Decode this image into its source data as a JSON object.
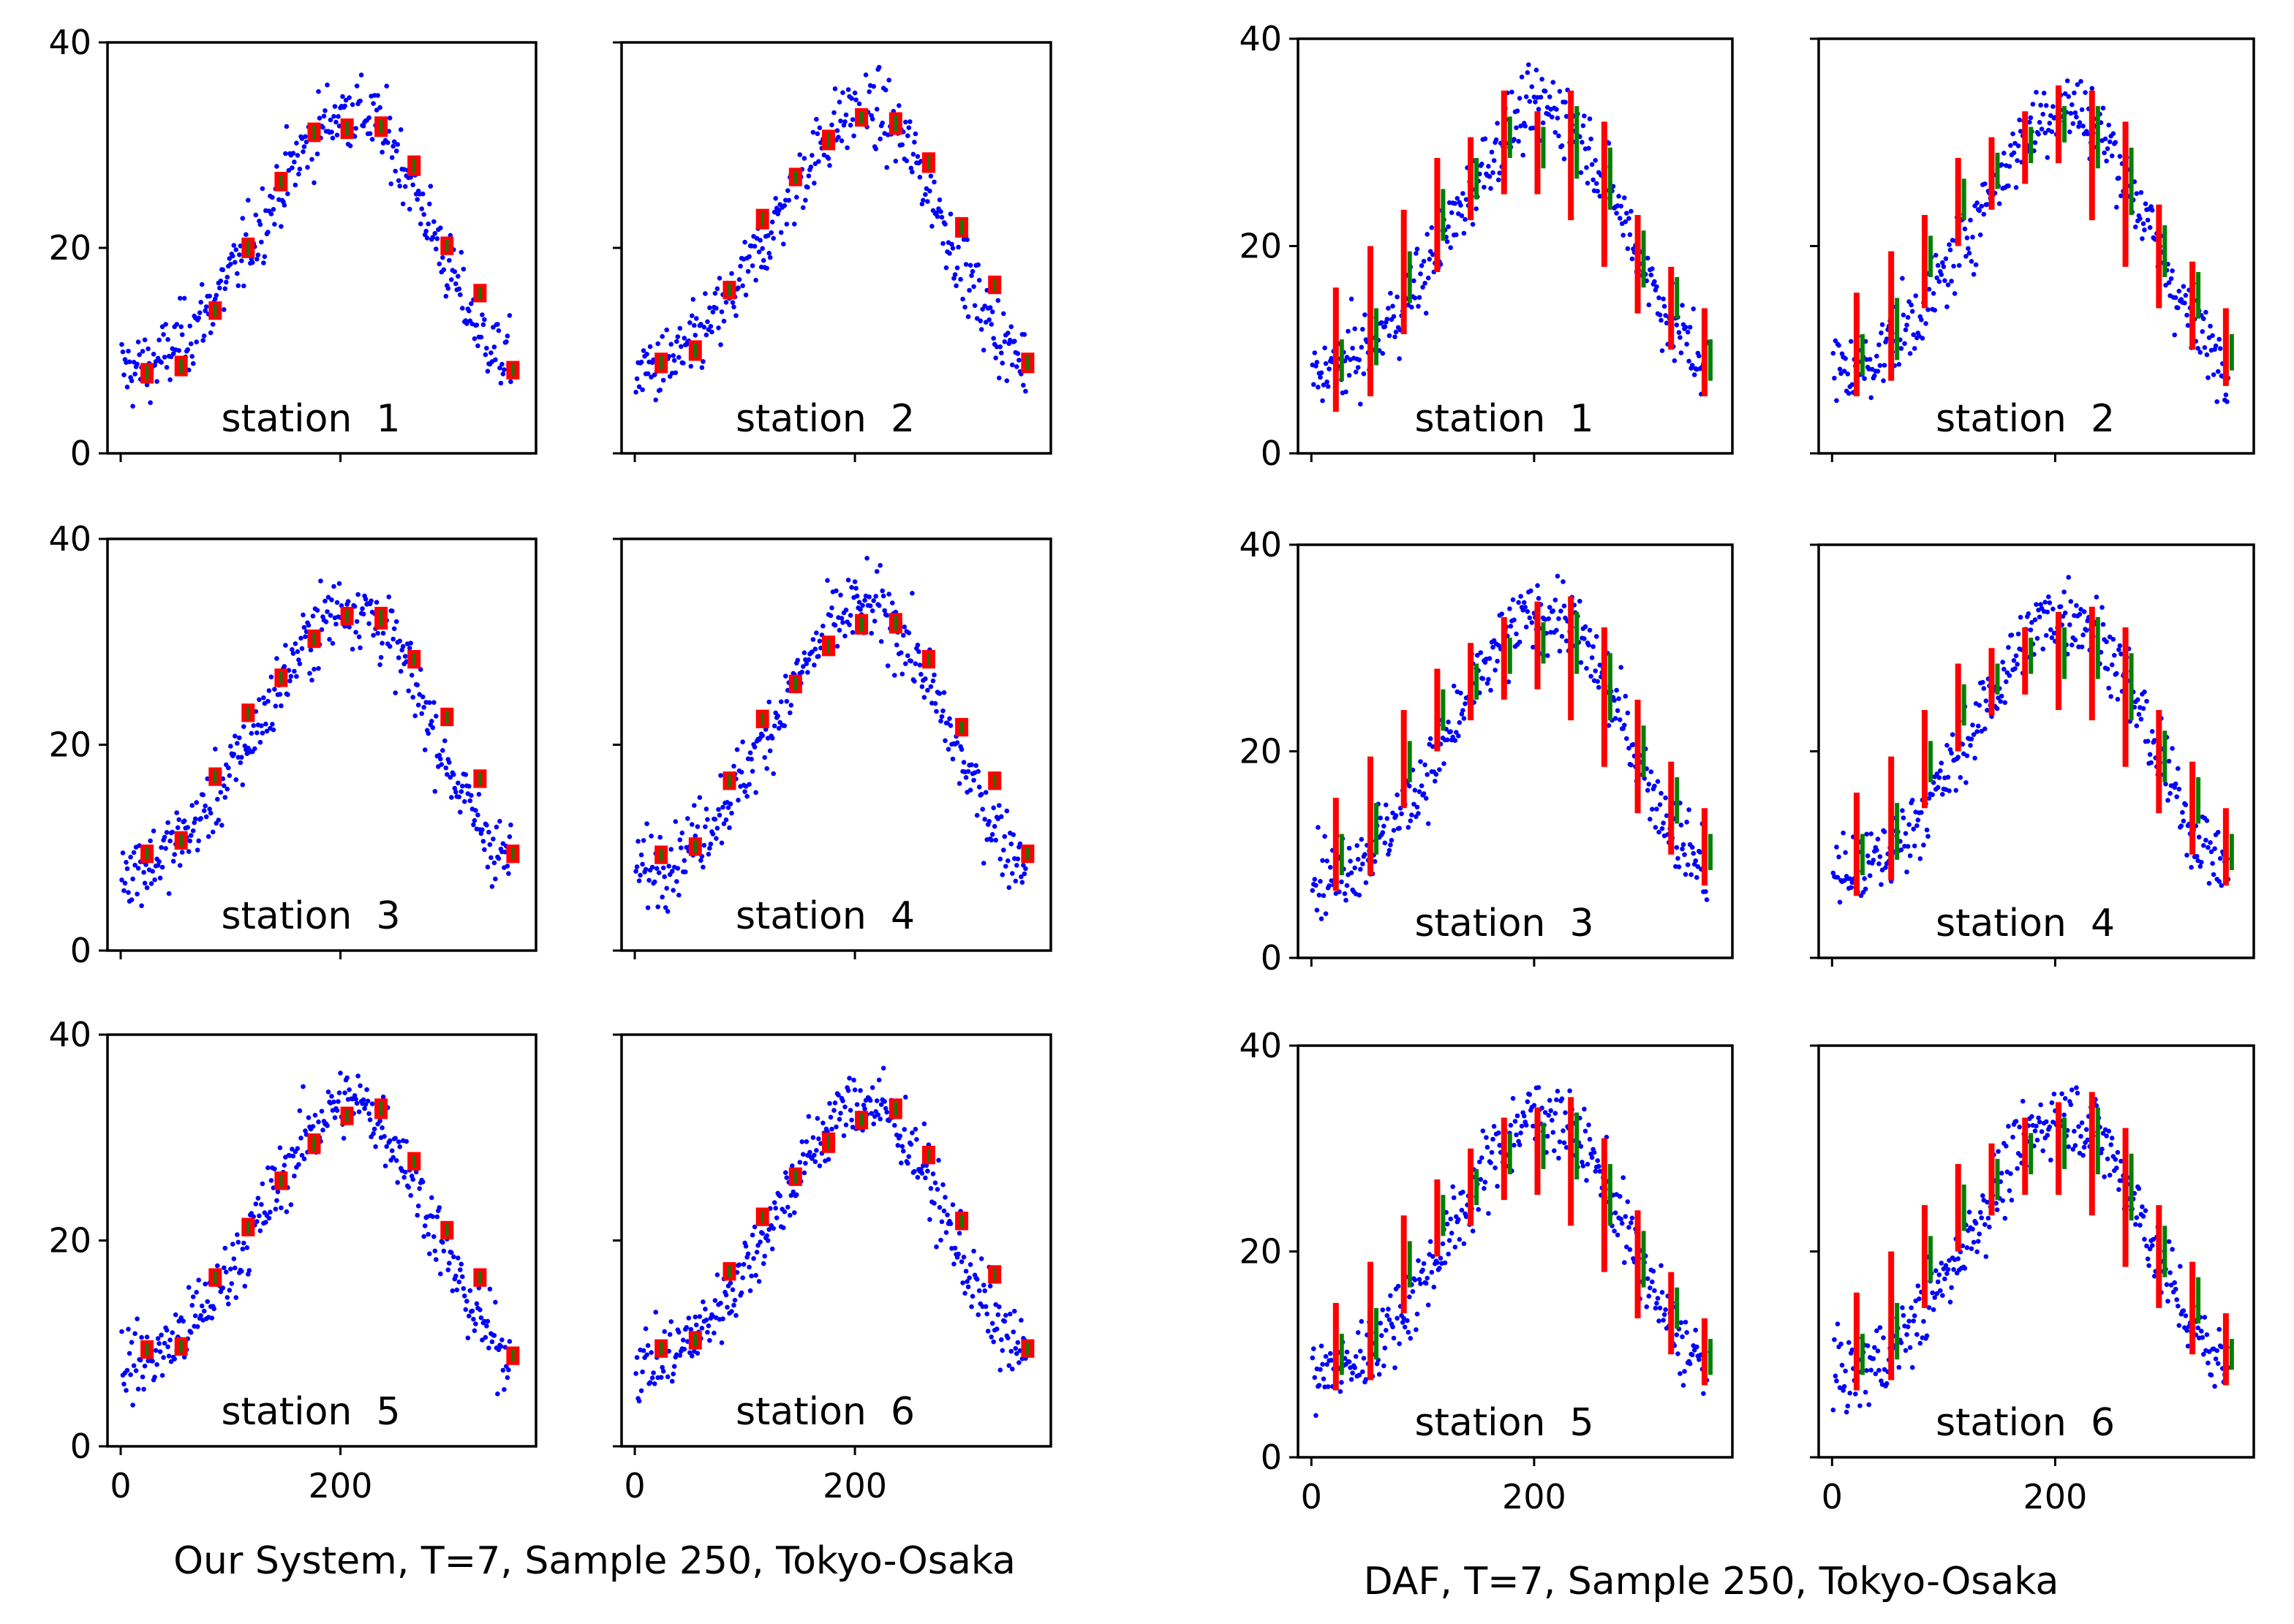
{
  "chart_data": [
    {
      "type": "scatter",
      "title": "Our System, T=7, Sample 250, Tokyo-Osaka",
      "xlabel": "",
      "ylabel": "",
      "xlim": [
        -12,
        378
      ],
      "ylim": [
        0,
        40
      ],
      "xticks": [
        0,
        200
      ],
      "yticks": [
        0,
        20,
        40
      ],
      "bar_style": "box",
      "colors": {
        "points": "#0000ff",
        "pred_range": "#ff0000",
        "pred_mean": "#008000"
      },
      "panels": [
        {
          "label": "station  1",
          "dip": 0,
          "bars": [
            [
              24,
              6.8,
              8.8,
              7.8
            ],
            [
              55,
              7.5,
              9.5,
              8.6
            ],
            [
              86,
              13.0,
              14.8,
              13.9
            ],
            [
              116,
              19.0,
              21.0,
              20.0
            ],
            [
              146,
              25.5,
              27.4,
              26.5
            ],
            [
              176,
              30.3,
              32.2,
              31.2
            ],
            [
              206,
              30.6,
              32.6,
              31.6
            ],
            [
              237,
              30.8,
              32.8,
              31.8
            ],
            [
              267,
              27.0,
              29.0,
              28.0
            ],
            [
              297,
              19.3,
              21.1,
              20.2
            ],
            [
              327,
              14.7,
              16.5,
              15.6
            ],
            [
              357,
              7.2,
              9.0,
              8.1
            ]
          ]
        },
        {
          "label": "station  2",
          "dip": 0,
          "bars": [
            [
              24,
              7.8,
              9.8,
              8.8
            ],
            [
              55,
              9.0,
              11.0,
              10.0
            ],
            [
              86,
              15.0,
              16.8,
              15.9
            ],
            [
              116,
              21.8,
              23.8,
              22.8
            ],
            [
              146,
              26.0,
              27.8,
              26.9
            ],
            [
              176,
              29.5,
              31.5,
              30.5
            ],
            [
              206,
              31.8,
              33.6,
              32.7
            ],
            [
              237,
              31.0,
              33.2,
              32.1
            ],
            [
              267,
              27.3,
              29.3,
              28.3
            ],
            [
              297,
              21.0,
              23.0,
              22.0
            ],
            [
              327,
              15.5,
              17.3,
              16.4
            ],
            [
              357,
              7.8,
              9.8,
              8.8
            ]
          ]
        },
        {
          "label": "station  3",
          "dip": 0,
          "bars": [
            [
              24,
              8.5,
              10.3,
              9.4
            ],
            [
              55,
              9.8,
              11.6,
              10.7
            ],
            [
              86,
              16.0,
              17.8,
              16.9
            ],
            [
              116,
              22.2,
              24.0,
              23.1
            ],
            [
              146,
              25.6,
              27.4,
              26.5
            ],
            [
              176,
              29.4,
              31.2,
              30.3
            ],
            [
              206,
              31.6,
              33.4,
              32.5
            ],
            [
              237,
              31.2,
              33.4,
              32.3
            ],
            [
              267,
              27.4,
              29.2,
              28.3
            ],
            [
              297,
              21.8,
              23.6,
              22.7
            ],
            [
              327,
              15.8,
              17.6,
              16.7
            ],
            [
              357,
              8.5,
              10.3,
              9.4
            ]
          ]
        },
        {
          "label": "station  4",
          "dip": 0,
          "bars": [
            [
              24,
              8.4,
              10.2,
              9.3
            ],
            [
              55,
              9.2,
              11.0,
              10.1
            ],
            [
              86,
              15.6,
              17.4,
              16.5
            ],
            [
              116,
              21.6,
              23.4,
              22.5
            ],
            [
              146,
              25.0,
              26.8,
              25.9
            ],
            [
              176,
              28.6,
              30.6,
              29.6
            ],
            [
              206,
              30.7,
              32.7,
              31.7
            ],
            [
              237,
              30.8,
              32.8,
              31.8
            ],
            [
              267,
              27.4,
              29.2,
              28.3
            ],
            [
              297,
              20.8,
              22.6,
              21.7
            ],
            [
              327,
              15.6,
              17.4,
              16.5
            ],
            [
              357,
              8.5,
              10.3,
              9.4
            ]
          ]
        },
        {
          "label": "station  5",
          "dip": 0,
          "bars": [
            [
              24,
              8.5,
              10.3,
              9.4
            ],
            [
              55,
              8.8,
              10.6,
              9.7
            ],
            [
              86,
              15.5,
              17.3,
              16.4
            ],
            [
              116,
              20.4,
              22.2,
              21.3
            ],
            [
              146,
              24.9,
              26.7,
              25.8
            ],
            [
              176,
              28.4,
              30.4,
              29.4
            ],
            [
              206,
              31.2,
              33.0,
              32.1
            ],
            [
              237,
              31.8,
              33.8,
              32.8
            ],
            [
              267,
              26.8,
              28.6,
              27.7
            ],
            [
              297,
              20.1,
              21.9,
              21.0
            ],
            [
              327,
              15.5,
              17.3,
              16.4
            ],
            [
              357,
              7.9,
              9.7,
              8.8
            ]
          ]
        },
        {
          "label": "station  6",
          "dip": 0,
          "bars": [
            [
              24,
              8.6,
              10.4,
              9.5
            ],
            [
              55,
              9.4,
              11.2,
              10.3
            ],
            [
              86,
              16.1,
              17.9,
              17.0
            ],
            [
              116,
              21.4,
              23.2,
              22.3
            ],
            [
              146,
              25.3,
              27.1,
              26.2
            ],
            [
              176,
              28.5,
              30.5,
              29.5
            ],
            [
              206,
              30.8,
              32.6,
              31.7
            ],
            [
              237,
              31.8,
              33.8,
              32.8
            ],
            [
              267,
              27.4,
              29.2,
              28.3
            ],
            [
              297,
              21.0,
              22.8,
              21.9
            ],
            [
              327,
              15.8,
              17.6,
              16.7
            ],
            [
              357,
              8.6,
              10.4,
              9.5
            ]
          ]
        }
      ]
    },
    {
      "type": "scatter",
      "title": "DAF, T=7, Sample 250, Tokyo-Osaka",
      "xlabel": "",
      "ylabel": "",
      "xlim": [
        -12,
        378
      ],
      "ylim": [
        0,
        40
      ],
      "xticks": [
        0,
        200
      ],
      "yticks": [
        0,
        20,
        40
      ],
      "bar_style": "range",
      "colors": {
        "points": "#0000ff",
        "pred_range": "#ff0000",
        "pred_mean": "#008000"
      },
      "panels": [
        {
          "label": "station  1",
          "dip": 0,
          "bars": [
            [
              22,
              4.0,
              16.0,
              7.0,
              11.0
            ],
            [
              53,
              5.5,
              20.0,
              8.5,
              14.0
            ],
            [
              83,
              11.5,
              23.5,
              14.5,
              19.5
            ],
            [
              113,
              17.5,
              28.5,
              20.5,
              25.5
            ],
            [
              143,
              22.5,
              30.5,
              24.5,
              28.5
            ],
            [
              173,
              25.0,
              35.0,
              28.5,
              32.5
            ],
            [
              203,
              25.0,
              33.0,
              27.5,
              31.5
            ],
            [
              233,
              22.5,
              35.0,
              26.5,
              33.5
            ],
            [
              263,
              18.0,
              32.0,
              23.5,
              29.5
            ],
            [
              293,
              13.5,
              23.0,
              16.0,
              21.5
            ],
            [
              323,
              10.0,
              18.0,
              13.0,
              17.0
            ],
            [
              353,
              5.5,
              14.0,
              7.0,
              11.0
            ]
          ]
        },
        {
          "label": "station  2",
          "dip": 0,
          "bars": [
            [
              22,
              5.5,
              15.5,
              7.5,
              11.5
            ],
            [
              53,
              7.0,
              19.5,
              9.0,
              15.0
            ],
            [
              83,
              14.0,
              23.0,
              17.0,
              21.0
            ],
            [
              113,
              20.0,
              28.5,
              22.5,
              26.5
            ],
            [
              143,
              23.5,
              30.5,
              25.5,
              29.0
            ],
            [
              173,
              26.0,
              33.0,
              28.0,
              31.5
            ],
            [
              203,
              28.0,
              35.5,
              30.0,
              33.5
            ],
            [
              233,
              22.5,
              35.0,
              27.5,
              33.5
            ],
            [
              263,
              18.0,
              32.0,
              23.0,
              29.5
            ],
            [
              293,
              14.0,
              24.0,
              17.0,
              22.0
            ],
            [
              323,
              10.0,
              18.5,
              13.0,
              17.5
            ],
            [
              353,
              6.5,
              14.0,
              8.0,
              11.5
            ]
          ]
        },
        {
          "label": "station  3",
          "dip": 0,
          "bars": [
            [
              22,
              6.5,
              15.5,
              8.0,
              12.0
            ],
            [
              53,
              8.0,
              19.5,
              10.0,
              15.0
            ],
            [
              83,
              14.5,
              24.0,
              17.0,
              21.0
            ],
            [
              113,
              20.0,
              28.0,
              22.0,
              26.0
            ],
            [
              143,
              23.0,
              30.5,
              25.0,
              28.5
            ],
            [
              173,
              25.0,
              33.0,
              27.5,
              31.0
            ],
            [
              203,
              26.0,
              34.5,
              28.5,
              32.5
            ],
            [
              233,
              23.0,
              35.0,
              27.5,
              33.5
            ],
            [
              263,
              18.5,
              32.0,
              23.0,
              29.5
            ],
            [
              293,
              14.0,
              25.0,
              17.5,
              22.5
            ],
            [
              323,
              10.0,
              19.0,
              13.0,
              17.5
            ],
            [
              353,
              7.0,
              14.5,
              8.5,
              12.0
            ]
          ]
        },
        {
          "label": "station  4",
          "dip": 0,
          "bars": [
            [
              22,
              6.0,
              16.0,
              8.0,
              12.0
            ],
            [
              53,
              7.5,
              19.5,
              9.5,
              15.0
            ],
            [
              83,
              14.5,
              24.0,
              17.0,
              21.0
            ],
            [
              113,
              20.0,
              28.5,
              22.5,
              26.5
            ],
            [
              143,
              23.5,
              30.0,
              25.5,
              28.5
            ],
            [
              173,
              25.5,
              32.0,
              27.5,
              31.0
            ],
            [
              203,
              24.0,
              33.5,
              27.0,
              32.0
            ],
            [
              233,
              23.0,
              34.0,
              27.0,
              33.0
            ],
            [
              263,
              18.5,
              32.0,
              23.0,
              29.5
            ],
            [
              293,
              14.0,
              24.0,
              17.0,
              22.0
            ],
            [
              323,
              10.0,
              19.0,
              13.0,
              17.5
            ],
            [
              353,
              7.0,
              14.5,
              8.5,
              12.0
            ]
          ]
        },
        {
          "label": "station  5",
          "dip": 0,
          "bars": [
            [
              22,
              6.5,
              15.0,
              8.0,
              12.0
            ],
            [
              53,
              7.5,
              19.0,
              9.5,
              14.5
            ],
            [
              83,
              14.0,
              23.5,
              16.5,
              21.0
            ],
            [
              113,
              19.5,
              27.0,
              21.5,
              25.5
            ],
            [
              143,
              22.5,
              30.0,
              24.5,
              28.0
            ],
            [
              173,
              25.0,
              33.0,
              27.5,
              31.5
            ],
            [
              203,
              25.5,
              34.0,
              28.0,
              32.5
            ],
            [
              233,
              22.5,
              35.0,
              27.0,
              33.5
            ],
            [
              263,
              18.0,
              31.0,
              22.5,
              28.5
            ],
            [
              293,
              13.5,
              24.0,
              16.5,
              22.0
            ],
            [
              323,
              10.0,
              18.0,
              12.5,
              16.5
            ],
            [
              353,
              7.0,
              13.5,
              8.0,
              11.5
            ]
          ]
        },
        {
          "label": "station  6",
          "dip": 0,
          "bars": [
            [
              22,
              6.5,
              16.0,
              8.0,
              12.0
            ],
            [
              53,
              7.5,
              20.0,
              9.5,
              15.0
            ],
            [
              83,
              14.5,
              24.5,
              17.0,
              21.5
            ],
            [
              113,
              20.0,
              28.5,
              22.0,
              26.5
            ],
            [
              143,
              23.5,
              30.5,
              25.0,
              29.0
            ],
            [
              173,
              25.5,
              33.0,
              27.5,
              31.5
            ],
            [
              203,
              25.5,
              34.5,
              28.0,
              33.0
            ],
            [
              233,
              23.5,
              35.5,
              27.5,
              34.0
            ],
            [
              263,
              18.5,
              32.0,
              23.0,
              29.5
            ],
            [
              293,
              14.5,
              24.5,
              17.5,
              22.5
            ],
            [
              323,
              10.0,
              19.0,
              13.0,
              17.5
            ],
            [
              353,
              7.0,
              14.0,
              8.5,
              11.5
            ]
          ]
        }
      ]
    }
  ]
}
